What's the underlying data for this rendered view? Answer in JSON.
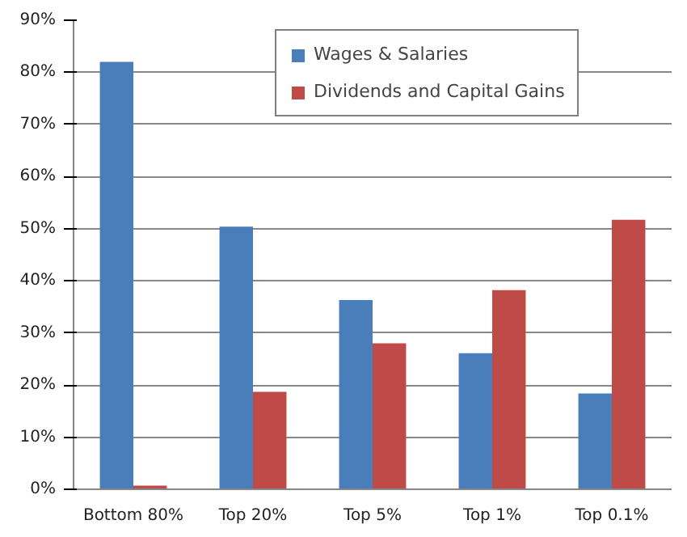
{
  "chart_data": {
    "type": "bar",
    "categories": [
      "Bottom 80%",
      "Top 20%",
      "Top 5%",
      "Top 1%",
      "Top 0.1%"
    ],
    "series": [
      {
        "name": "Wages & Salaries",
        "color": "#4a7ebb",
        "values": [
          82,
          50.4,
          36.3,
          26.1,
          18.4
        ]
      },
      {
        "name": "Dividends and Capital Gains",
        "color": "#be4b48",
        "values": [
          0.7,
          18.7,
          28,
          38.2,
          51.7
        ]
      }
    ],
    "ylim": [
      0,
      90
    ],
    "yticks": [
      {
        "value": 0,
        "label": "0%"
      },
      {
        "value": 10,
        "label": "10%"
      },
      {
        "value": 20,
        "label": "20%"
      },
      {
        "value": 30,
        "label": "30%"
      },
      {
        "value": 40,
        "label": "40%"
      },
      {
        "value": 50,
        "label": "50%"
      },
      {
        "value": 60,
        "label": "60%"
      },
      {
        "value": 70,
        "label": "70%"
      },
      {
        "value": 80,
        "label": "80%"
      },
      {
        "value": 90,
        "label": "90%"
      }
    ],
    "grid": "y",
    "legend": "top"
  }
}
